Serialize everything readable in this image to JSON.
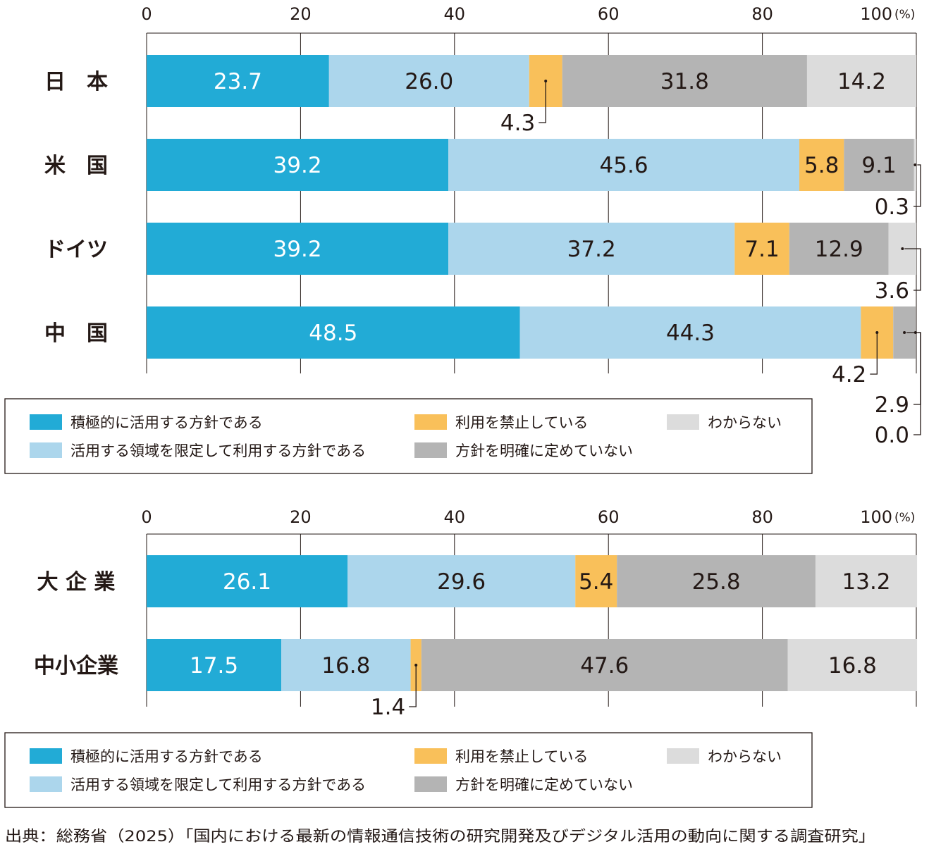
{
  "colors": {
    "積極的に活用する方針である": "#22abd6",
    "活用する領域を限定して利用する方針である": "#acd6ec",
    "利用を禁止している": "#f9c05a",
    "方針を明確に定めていない": "#b4b4b4",
    "わからない": "#dcdcdc"
  },
  "chart_data": [
    {
      "type": "bar",
      "orientation": "horizontal",
      "stacked": true,
      "xlim": [
        0,
        100
      ],
      "xticks": [
        "0",
        "20",
        "40",
        "60",
        "80",
        "100"
      ],
      "unit": "(%)",
      "grid": true,
      "legend_placement": "bottom",
      "categories": [
        "日　本",
        "米　国",
        "ドイツ",
        "中　国"
      ],
      "series": [
        {
          "name": "積極的に活用する方針である",
          "values": [
            23.7,
            39.2,
            39.2,
            48.5
          ]
        },
        {
          "name": "活用する領域を限定して利用する方針である",
          "values": [
            26.0,
            45.6,
            37.2,
            44.3
          ]
        },
        {
          "name": "利用を禁止している",
          "values": [
            4.3,
            5.8,
            7.1,
            4.2
          ]
        },
        {
          "name": "方針を明確に定めていない",
          "values": [
            31.8,
            9.1,
            12.9,
            2.9
          ]
        },
        {
          "name": "わからない",
          "values": [
            14.2,
            0.3,
            3.6,
            0.0
          ]
        }
      ]
    },
    {
      "type": "bar",
      "orientation": "horizontal",
      "stacked": true,
      "xlim": [
        0,
        100
      ],
      "xticks": [
        "0",
        "20",
        "40",
        "60",
        "80",
        "100"
      ],
      "unit": "(%)",
      "grid": true,
      "legend_placement": "bottom",
      "categories": [
        "大 企 業",
        "中小企業"
      ],
      "series": [
        {
          "name": "積極的に活用する方針である",
          "values": [
            26.1,
            17.5
          ]
        },
        {
          "name": "活用する領域を限定して利用する方針である",
          "values": [
            29.6,
            16.8
          ]
        },
        {
          "name": "利用を禁止している",
          "values": [
            5.4,
            1.4
          ]
        },
        {
          "name": "方針を明確に定めていない",
          "values": [
            25.8,
            47.6
          ]
        },
        {
          "name": "わからない",
          "values": [
            13.2,
            16.8
          ]
        }
      ]
    }
  ],
  "source": "出典：総務省（2025）「国内における最新の情報通信技術の研究開発及びデジタル活用の動向に関する調査研究」"
}
